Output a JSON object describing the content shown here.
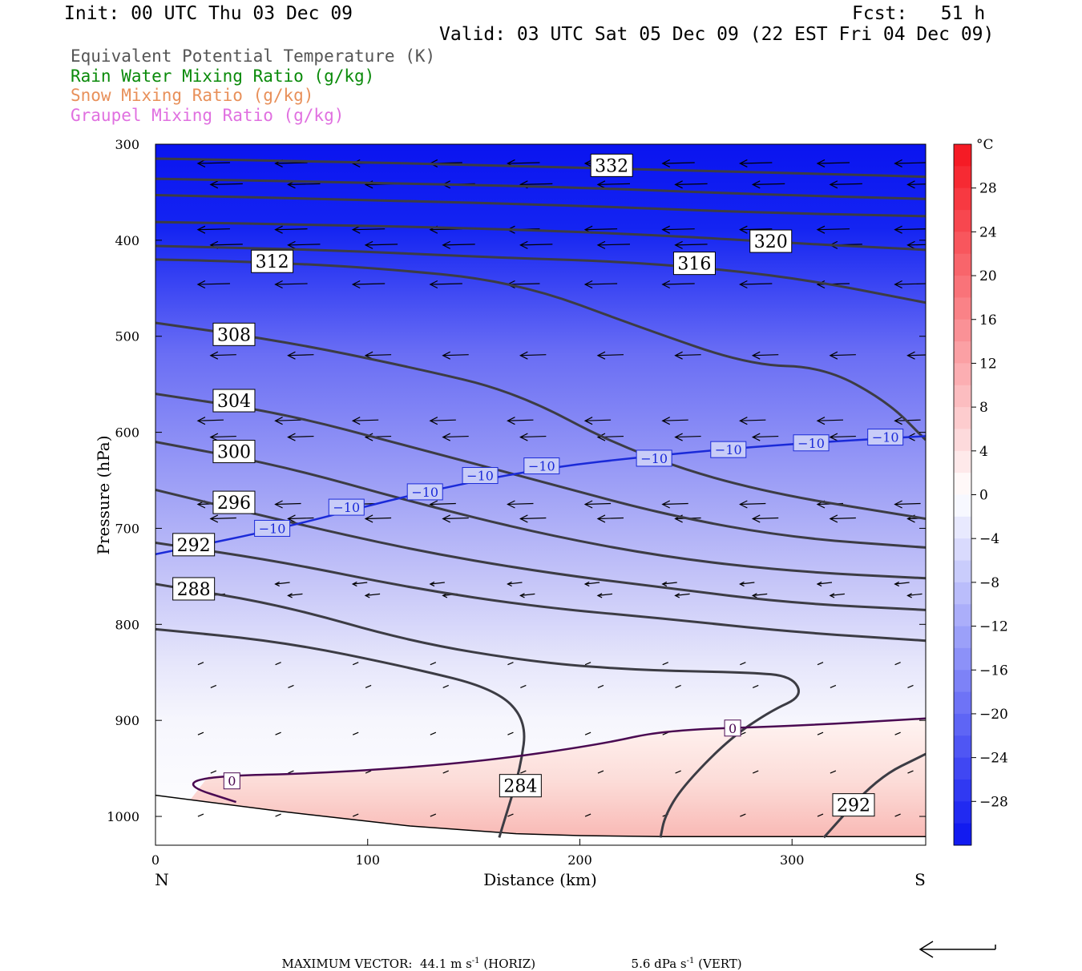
{
  "header": {
    "init": "Init: 00 UTC Thu 03 Dec 09",
    "fcst": "Fcst:   51 h",
    "valid": "Valid: 03 UTC Sat 05 Dec 09 (22 EST Fri 04 Dec 09)"
  },
  "legend": [
    {
      "label": "Equivalent Potential Temperature (K)",
      "color": "#555555"
    },
    {
      "label": "Rain Water Mixing Ratio (g/kg)",
      "color": "#0a8a0a"
    },
    {
      "label": "Snow Mixing Ratio (g/kg)",
      "color": "#e8905a"
    },
    {
      "label": "Graupel Mixing Ratio (g/kg)",
      "color": "#e070e0"
    }
  ],
  "chart_data": {
    "type": "cross-section",
    "xlabel": "Distance (km)",
    "ylabel": "Pressure (hPa)",
    "xlim": [
      0,
      363
    ],
    "ylim": [
      1030,
      300
    ],
    "x_ticks": [
      0,
      100,
      200,
      300
    ],
    "y_ticks": [
      300,
      400,
      500,
      600,
      700,
      800,
      900,
      1000
    ],
    "left_end_label": "N",
    "right_end_label": "S",
    "colorbar": {
      "unit": "°C",
      "ticks": [
        28,
        24,
        20,
        16,
        12,
        8,
        4,
        0,
        -4,
        -8,
        -12,
        -16,
        -20,
        -24,
        -28
      ],
      "tick_labels": [
        "28",
        "24",
        "20",
        "16",
        "12",
        "8",
        "4",
        "0",
        "−4",
        "−8",
        "−12",
        "−16",
        "−20",
        "−24",
        "−28"
      ],
      "range": [
        -32,
        32
      ]
    },
    "theta_e_contours": [
      {
        "value": 332,
        "label": "332",
        "label_at": [
          215,
          322
        ],
        "points": [
          [
            0,
            315
          ],
          [
            80,
            318
          ],
          [
            160,
            322
          ],
          [
            240,
            327
          ],
          [
            320,
            331
          ],
          [
            363,
            334
          ]
        ]
      },
      {
        "value": 328,
        "points": [
          [
            0,
            336
          ],
          [
            100,
            340
          ],
          [
            200,
            345
          ],
          [
            280,
            352
          ],
          [
            363,
            357
          ]
        ]
      },
      {
        "value": 324,
        "points": [
          [
            0,
            353
          ],
          [
            100,
            358
          ],
          [
            200,
            364
          ],
          [
            280,
            371
          ],
          [
            363,
            375
          ]
        ]
      },
      {
        "value": 320,
        "label": "320",
        "label_at": [
          290,
          401
        ],
        "points": [
          [
            0,
            381
          ],
          [
            80,
            384
          ],
          [
            160,
            388
          ],
          [
            240,
            395
          ],
          [
            300,
            403
          ],
          [
            363,
            410
          ]
        ]
      },
      {
        "value": 316,
        "label": "316",
        "label_at": [
          254,
          424
        ],
        "points": [
          [
            0,
            406
          ],
          [
            80,
            410
          ],
          [
            160,
            418
          ],
          [
            230,
            423
          ],
          [
            300,
            438
          ],
          [
            363,
            465
          ]
        ]
      },
      {
        "value": 312,
        "label": "312",
        "label_at": [
          55,
          422
        ],
        "points": [
          [
            0,
            420
          ],
          [
            40,
            422
          ],
          [
            100,
            428
          ],
          [
            170,
            443
          ],
          [
            230,
            492
          ],
          [
            280,
            530
          ],
          [
            315,
            532
          ],
          [
            345,
            568
          ],
          [
            363,
            608
          ]
        ]
      },
      {
        "value": 308,
        "label": "308",
        "label_at": [
          37,
          498
        ],
        "points": [
          [
            0,
            486
          ],
          [
            60,
            505
          ],
          [
            120,
            532
          ],
          [
            170,
            558
          ],
          [
            220,
            617
          ],
          [
            280,
            660
          ],
          [
            363,
            690
          ]
        ]
      },
      {
        "value": 304,
        "label": "304",
        "label_at": [
          37,
          567
        ],
        "points": [
          [
            0,
            560
          ],
          [
            60,
            580
          ],
          [
            120,
            615
          ],
          [
            180,
            650
          ],
          [
            240,
            686
          ],
          [
            300,
            710
          ],
          [
            363,
            720
          ]
        ]
      },
      {
        "value": 300,
        "label": "300",
        "label_at": [
          37,
          620
        ],
        "points": [
          [
            0,
            610
          ],
          [
            60,
            635
          ],
          [
            120,
            672
          ],
          [
            180,
            705
          ],
          [
            240,
            730
          ],
          [
            300,
            745
          ],
          [
            363,
            752
          ]
        ]
      },
      {
        "value": 296,
        "label": "296",
        "label_at": [
          37,
          673
        ],
        "points": [
          [
            0,
            660
          ],
          [
            60,
            692
          ],
          [
            120,
            722
          ],
          [
            180,
            745
          ],
          [
            240,
            762
          ],
          [
            300,
            778
          ],
          [
            363,
            785
          ]
        ]
      },
      {
        "value": 292,
        "label": "292",
        "label_at": [
          18,
          717
        ],
        "points": [
          [
            0,
            715
          ],
          [
            60,
            735
          ],
          [
            120,
            762
          ],
          [
            180,
            782
          ],
          [
            240,
            794
          ],
          [
            300,
            808
          ],
          [
            363,
            817
          ]
        ]
      },
      {
        "value": 288,
        "label": "288",
        "label_at": [
          18,
          763
        ],
        "points": [
          [
            0,
            758
          ],
          [
            60,
            780
          ],
          [
            120,
            818
          ],
          [
            180,
            840
          ],
          [
            230,
            848
          ],
          [
            280,
            850
          ],
          [
            300,
            854
          ],
          [
            305,
            875
          ],
          [
            290,
            890
          ],
          [
            270,
            920
          ],
          [
            248,
            970
          ],
          [
            240,
            1000
          ],
          [
            238,
            1022
          ]
        ]
      },
      {
        "value": 284,
        "label": "284",
        "label_at": [
          172,
          968
        ],
        "points": [
          [
            0,
            805
          ],
          [
            60,
            818
          ],
          [
            120,
            845
          ],
          [
            160,
            867
          ],
          [
            175,
            900
          ],
          [
            172,
            950
          ],
          [
            165,
            1000
          ],
          [
            162,
            1022
          ]
        ]
      },
      {
        "value": 292,
        "label": "292",
        "label_at": [
          329,
          988
        ],
        "points": [
          [
            315,
            1022
          ],
          [
            340,
            960
          ],
          [
            363,
            935
          ]
        ]
      }
    ],
    "temperature_contours": [
      {
        "value": -10,
        "labels": [
          "−10",
          "−10",
          "−10",
          "−10",
          "−10",
          "−10",
          "−10",
          "−10",
          "−10"
        ],
        "label_positions": [
          [
            55,
            700
          ],
          [
            90,
            678
          ],
          [
            127,
            662
          ],
          [
            153,
            645
          ],
          [
            182,
            635
          ],
          [
            235,
            627
          ],
          [
            270,
            618
          ],
          [
            309,
            611
          ],
          [
            344,
            605
          ]
        ],
        "points": [
          [
            0,
            727
          ],
          [
            60,
            700
          ],
          [
            120,
            665
          ],
          [
            180,
            638
          ],
          [
            240,
            623
          ],
          [
            300,
            612
          ],
          [
            363,
            604
          ]
        ]
      },
      {
        "value": 0,
        "labels": [
          "0",
          "0"
        ],
        "label_positions": [
          [
            36,
            963
          ],
          [
            272,
            908
          ]
        ],
        "points": [
          [
            38,
            985
          ],
          [
            14,
            968
          ],
          [
            25,
            958
          ],
          [
            80,
            955
          ],
          [
            150,
            944
          ],
          [
            210,
            925
          ],
          [
            240,
            910
          ],
          [
            300,
            906
          ],
          [
            363,
            898
          ]
        ]
      }
    ],
    "colorbar_sample_note": "",
    "vector_rows": [
      320,
      342,
      389,
      405,
      446,
      520,
      588,
      605,
      675,
      690,
      758,
      770,
      842,
      866,
      915,
      955,
      1000
    ],
    "footer": {
      "max_vector_label": "MAXIMUM VECTOR:",
      "horiz_value": "44.1 m s",
      "horiz_sup": "-1",
      "horiz_unit": "(HORIZ)",
      "vert_value": "5.6 dPa s",
      "vert_sup": "-1",
      "vert_unit": "(VERT)"
    }
  }
}
